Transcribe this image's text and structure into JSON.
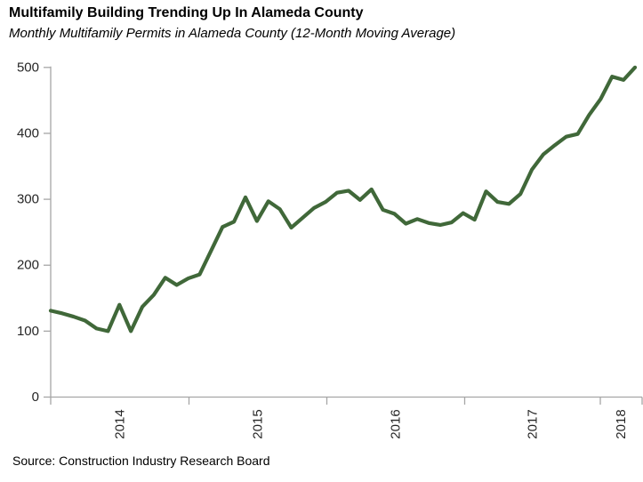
{
  "header": {
    "title": "Multifamily Building Trending Up In Alameda County",
    "subtitle": "Monthly Multifamily Permits in Alameda County (12-Month Moving Average)"
  },
  "footer": {
    "source": "Source: Construction Industry Research Board"
  },
  "chart_data": {
    "type": "line",
    "title": "Multifamily Building Trending Up In Alameda County",
    "subtitle": "Monthly Multifamily Permits in Alameda County (12-Month Moving Average)",
    "xlabel": "",
    "ylabel": "",
    "ylim": [
      0,
      500
    ],
    "y_ticks": [
      0,
      100,
      200,
      300,
      400,
      500
    ],
    "x_year_labels": [
      "2014",
      "2015",
      "2016",
      "2017",
      "2018"
    ],
    "grid": "off",
    "legend": "none",
    "line_color": "#406839",
    "axis_color": "#a6a6a6",
    "tick_label_color": "#262626",
    "series": [
      {
        "name": "Monthly multifamily permits, 12-month moving average",
        "x": [
          "2014-01",
          "2014-02",
          "2014-03",
          "2014-04",
          "2014-05",
          "2014-06",
          "2014-07",
          "2014-08",
          "2014-09",
          "2014-10",
          "2014-11",
          "2014-12",
          "2015-01",
          "2015-02",
          "2015-03",
          "2015-04",
          "2015-05",
          "2015-06",
          "2015-07",
          "2015-08",
          "2015-09",
          "2015-10",
          "2015-11",
          "2015-12",
          "2016-01",
          "2016-02",
          "2016-03",
          "2016-04",
          "2016-05",
          "2016-06",
          "2016-07",
          "2016-08",
          "2016-09",
          "2016-10",
          "2016-11",
          "2016-12",
          "2017-01",
          "2017-02",
          "2017-03",
          "2017-04",
          "2017-05",
          "2017-06",
          "2017-07",
          "2017-08",
          "2017-09",
          "2017-10",
          "2017-11",
          "2017-12",
          "2018-01",
          "2018-02",
          "2018-03",
          "2018-04"
        ],
        "values": [
          131,
          127,
          122,
          116,
          104,
          100,
          140,
          100,
          137,
          155,
          181,
          170,
          180,
          186,
          222,
          258,
          266,
          303,
          267,
          297,
          285,
          257,
          272,
          287,
          296,
          310,
          313,
          299,
          315,
          284,
          278,
          263,
          270,
          264,
          261,
          265,
          279,
          269,
          312,
          296,
          293,
          308,
          345,
          368,
          382,
          395,
          399,
          428,
          452,
          486,
          481,
          500
        ]
      }
    ]
  }
}
